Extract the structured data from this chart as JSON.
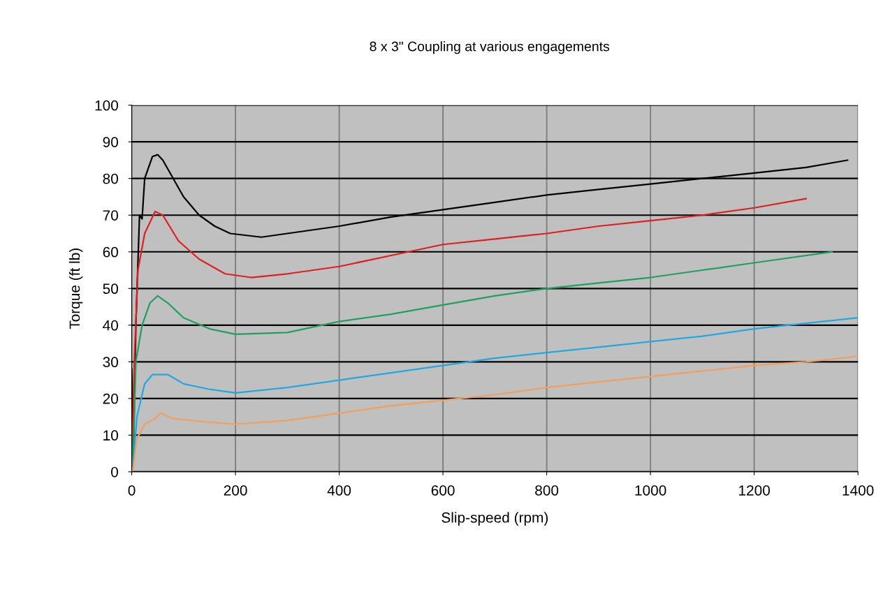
{
  "chart_data": {
    "type": "line",
    "title": "8 x 3\" Coupling at various engagements",
    "xlabel": "Slip-speed (rpm)",
    "ylabel": "Torque (ft lb)",
    "xlim": [
      0,
      1400
    ],
    "ylim": [
      0,
      100
    ],
    "xticks": [
      0,
      200,
      400,
      600,
      800,
      1000,
      1200,
      1400
    ],
    "yticks": [
      0,
      10,
      20,
      30,
      40,
      50,
      60,
      70,
      80,
      90,
      100
    ],
    "grid": true,
    "marker": "none",
    "line_style": "solid",
    "series": [
      {
        "color": "#000000",
        "x": [
          0,
          3,
          8,
          15,
          20,
          25,
          40,
          50,
          60,
          80,
          100,
          130,
          160,
          190,
          250,
          300,
          400,
          500,
          600,
          700,
          800,
          900,
          1000,
          1100,
          1200,
          1300,
          1380
        ],
        "values": [
          28,
          5,
          40,
          70,
          69,
          80,
          86,
          86.5,
          85,
          80,
          75,
          70,
          67,
          65,
          64,
          65,
          67,
          69.5,
          71.5,
          73.5,
          75.5,
          77,
          78.5,
          80,
          81.5,
          83,
          85
        ]
      },
      {
        "color": "#e02020",
        "x": [
          0,
          5,
          12,
          25,
          45,
          60,
          90,
          130,
          180,
          230,
          300,
          400,
          500,
          600,
          700,
          800,
          900,
          1000,
          1100,
          1200,
          1300
        ],
        "values": [
          0,
          30,
          55,
          65,
          71,
          70,
          63,
          58,
          54,
          53,
          54,
          56,
          59,
          62,
          63.5,
          65,
          67,
          68.5,
          70,
          72,
          74.5
        ]
      },
      {
        "color": "#20a060",
        "x": [
          0,
          3,
          8,
          20,
          35,
          50,
          70,
          100,
          150,
          200,
          300,
          400,
          500,
          600,
          700,
          800,
          900,
          1000,
          1100,
          1200,
          1350
        ],
        "values": [
          0,
          5,
          30,
          40,
          46,
          48,
          46,
          42,
          39,
          37.5,
          38,
          41,
          43,
          45.5,
          48,
          50,
          51.5,
          53,
          55,
          57,
          60
        ]
      },
      {
        "color": "#20a8e0",
        "x": [
          0,
          3,
          10,
          25,
          40,
          70,
          100,
          150,
          200,
          300,
          400,
          500,
          600,
          700,
          800,
          900,
          1000,
          1100,
          1200,
          1300,
          1400
        ],
        "values": [
          0,
          2,
          15,
          24,
          26.5,
          26.5,
          24,
          22.5,
          21.5,
          23,
          25,
          27,
          29,
          31,
          32.5,
          34,
          35.5,
          37,
          39,
          40.5,
          42
        ]
      },
      {
        "color": "#f0a060",
        "x": [
          0,
          3,
          10,
          25,
          45,
          55,
          80,
          150,
          200,
          300,
          400,
          500,
          600,
          700,
          800,
          900,
          1000,
          1100,
          1200,
          1300,
          1400
        ],
        "values": [
          0,
          1,
          9,
          13,
          14.5,
          16,
          14.5,
          13.5,
          13,
          14,
          16,
          18,
          19.5,
          21,
          23,
          24.5,
          26,
          27.5,
          29,
          30,
          31.5
        ]
      }
    ]
  }
}
